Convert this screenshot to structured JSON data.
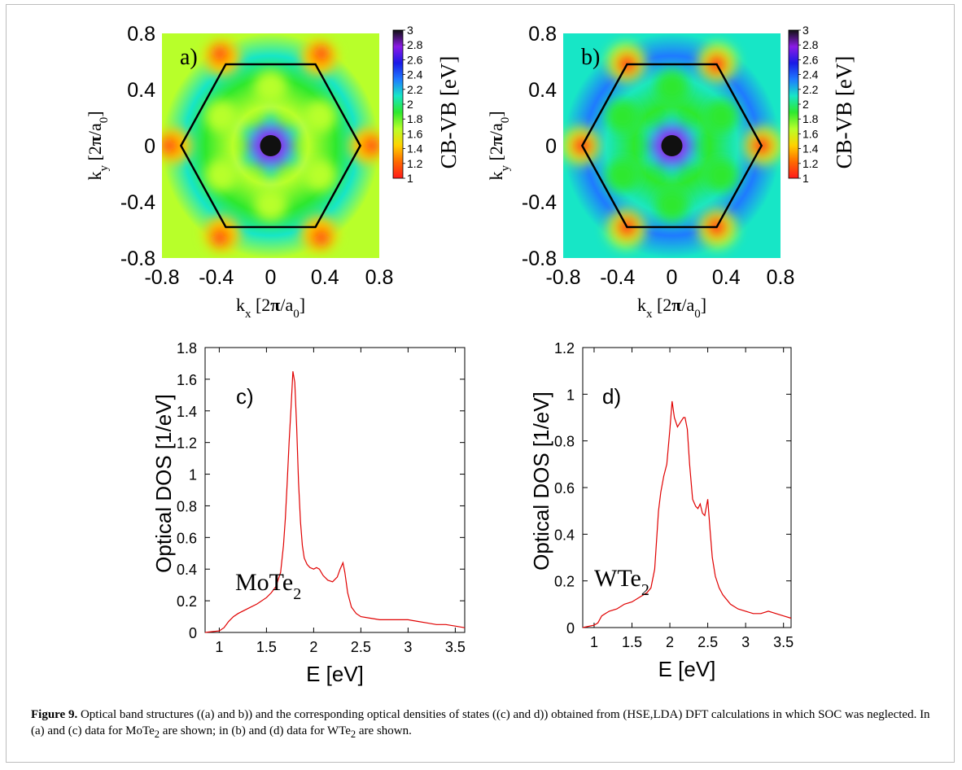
{
  "colors": {
    "curve": "#e00000",
    "hexagon": "#000000",
    "axis": "#000000"
  },
  "colormap_stops": [
    "#ff1a1a",
    "#ff6a00",
    "#ffd200",
    "#b8ff2a",
    "#2ee82e",
    "#17e6c6",
    "#1e7bff",
    "#1a1ae6",
    "#8a1ae6",
    "#101010"
  ],
  "chart_data": [
    {
      "type": "heatmap",
      "panel_label": "a)",
      "xlabel": "kx [2π/a0]",
      "ylabel": "ky [2π/a0]",
      "xticks": [
        "-0.8",
        "-0.4",
        "0",
        "0.4",
        "0.8"
      ],
      "yticks": [
        "0.8",
        "0.4",
        "0",
        "-0.4",
        "-0.8"
      ],
      "xlim": [
        -0.8,
        0.8
      ],
      "ylim": [
        -0.8,
        0.8
      ],
      "colorbar_label": "CB-VB [eV]",
      "colorbar_ticks": [
        "3",
        "2.8",
        "2.6",
        "2.4",
        "2.2",
        "2",
        "1.8",
        "1.6",
        "1.4",
        "1.2",
        "1"
      ],
      "colorbar_range": [
        1,
        3
      ],
      "hexagon_vertices": [
        [
          0.66,
          0
        ],
        [
          0.33,
          0.58
        ],
        [
          -0.33,
          0.58
        ],
        [
          -0.66,
          0
        ],
        [
          -0.33,
          -0.58
        ],
        [
          0.33,
          -0.58
        ]
      ]
    },
    {
      "type": "heatmap",
      "panel_label": "b)",
      "xlabel": "kx [2π/a0]",
      "ylabel": "ky [2π/a0]",
      "xticks": [
        "-0.8",
        "-0.4",
        "0",
        "0.4",
        "0.8"
      ],
      "yticks": [
        "0.8",
        "0.4",
        "0",
        "-0.4",
        "-0.8"
      ],
      "xlim": [
        -0.8,
        0.8
      ],
      "ylim": [
        -0.8,
        0.8
      ],
      "colorbar_label": "CB-VB [eV]",
      "colorbar_ticks": [
        "3",
        "2.8",
        "2.6",
        "2.4",
        "2.2",
        "2",
        "1.8",
        "1.6",
        "1.4",
        "1.2",
        "1"
      ],
      "colorbar_range": [
        1,
        3
      ],
      "hexagon_vertices": [
        [
          0.66,
          0
        ],
        [
          0.33,
          0.58
        ],
        [
          -0.33,
          0.58
        ],
        [
          -0.66,
          0
        ],
        [
          -0.33,
          -0.58
        ],
        [
          0.33,
          -0.58
        ]
      ]
    },
    {
      "type": "line",
      "panel_label": "c)",
      "material": "MoTe",
      "material_sub": "2",
      "xlabel": "E [eV]",
      "ylabel": "Optical DOS [1/eV]",
      "xlim": [
        0.85,
        3.6
      ],
      "ylim": [
        0,
        1.8
      ],
      "xticks": [
        "1",
        "1.5",
        "2",
        "2.5",
        "3",
        "3.5"
      ],
      "yticks": [
        "0",
        "0.2",
        "0.4",
        "0.6",
        "0.8",
        "1",
        "1.2",
        "1.4",
        "1.6",
        "1.8"
      ],
      "series": [
        {
          "x": [
            0.85,
            1.0,
            1.05,
            1.1,
            1.15,
            1.2,
            1.3,
            1.4,
            1.5,
            1.55,
            1.6,
            1.65,
            1.68,
            1.7,
            1.72,
            1.74,
            1.76,
            1.78,
            1.8,
            1.82,
            1.84,
            1.86,
            1.88,
            1.9,
            1.93,
            1.96,
            2.0,
            2.03,
            2.06,
            2.1,
            2.15,
            2.2,
            2.25,
            2.28,
            2.31,
            2.33,
            2.36,
            2.4,
            2.45,
            2.5,
            2.6,
            2.7,
            2.8,
            2.9,
            3.0,
            3.1,
            3.2,
            3.3,
            3.4,
            3.5,
            3.6
          ],
          "y": [
            0.0,
            0.01,
            0.03,
            0.07,
            0.1,
            0.12,
            0.15,
            0.18,
            0.22,
            0.25,
            0.29,
            0.38,
            0.55,
            0.72,
            0.95,
            1.2,
            1.42,
            1.65,
            1.58,
            1.3,
            0.95,
            0.7,
            0.55,
            0.47,
            0.43,
            0.41,
            0.4,
            0.41,
            0.4,
            0.36,
            0.33,
            0.32,
            0.35,
            0.4,
            0.44,
            0.38,
            0.25,
            0.16,
            0.12,
            0.1,
            0.09,
            0.08,
            0.08,
            0.08,
            0.08,
            0.07,
            0.06,
            0.05,
            0.05,
            0.04,
            0.03
          ]
        }
      ]
    },
    {
      "type": "line",
      "panel_label": "d)",
      "material": "WTe",
      "material_sub": "2",
      "xlabel": "E [eV]",
      "ylabel": "Optical DOS [1/eV]",
      "xlim": [
        0.85,
        3.6
      ],
      "ylim": [
        0,
        1.2
      ],
      "xticks": [
        "1",
        "1.5",
        "2",
        "2.5",
        "3",
        "3.5"
      ],
      "yticks": [
        "0",
        "0.2",
        "0.4",
        "0.6",
        "0.8",
        "1",
        "1.2"
      ],
      "series": [
        {
          "x": [
            0.85,
            1.0,
            1.05,
            1.1,
            1.15,
            1.2,
            1.3,
            1.4,
            1.5,
            1.6,
            1.7,
            1.75,
            1.8,
            1.85,
            1.88,
            1.92,
            1.96,
            2.0,
            2.03,
            2.06,
            2.1,
            2.14,
            2.18,
            2.2,
            2.23,
            2.26,
            2.3,
            2.34,
            2.37,
            2.4,
            2.43,
            2.46,
            2.5,
            2.53,
            2.56,
            2.6,
            2.65,
            2.7,
            2.8,
            2.9,
            3.0,
            3.1,
            3.2,
            3.3,
            3.4,
            3.5,
            3.6
          ],
          "y": [
            0.0,
            0.01,
            0.02,
            0.05,
            0.06,
            0.07,
            0.08,
            0.1,
            0.11,
            0.13,
            0.15,
            0.17,
            0.25,
            0.5,
            0.58,
            0.65,
            0.7,
            0.85,
            0.97,
            0.9,
            0.86,
            0.88,
            0.9,
            0.9,
            0.85,
            0.7,
            0.55,
            0.52,
            0.51,
            0.53,
            0.49,
            0.48,
            0.55,
            0.42,
            0.3,
            0.22,
            0.17,
            0.14,
            0.1,
            0.08,
            0.07,
            0.06,
            0.06,
            0.07,
            0.06,
            0.05,
            0.04
          ]
        }
      ]
    }
  ],
  "caption": {
    "label": "Figure 9.",
    "text_1": " Optical band structures ((a) and b)) and the corresponding optical densities of states ((c) and d)) obtained from (HSE,LDA) DFT calculations in which SOC was neglected. In (a) and (c) data for MoTe",
    "sub_1": "2",
    "text_2": " are shown; in (b) and (d) data for WTe",
    "sub_2": "2",
    "text_3": " are shown."
  }
}
